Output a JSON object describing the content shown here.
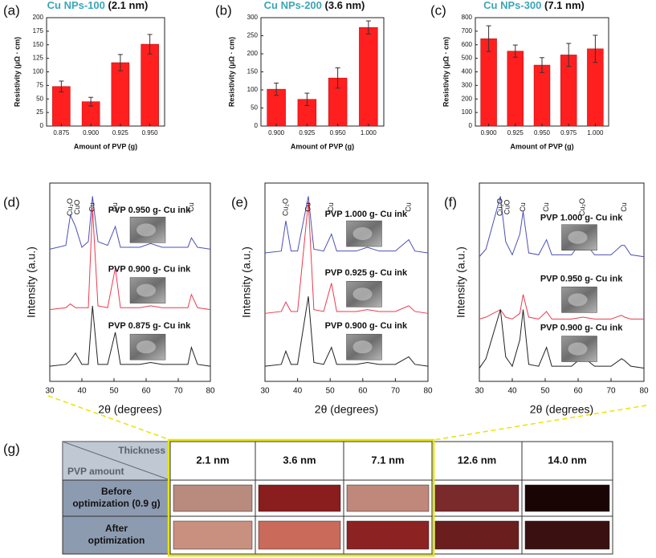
{
  "chart_data": [
    {
      "type": "bar",
      "label": "(a)",
      "title": "Cu NPs-100",
      "subtitle": "(2.1 nm)",
      "ylabel": "Resistivity (μΩ · cm)",
      "xlabel": "Amount of PVP (g)",
      "categories": [
        "0.875",
        "0.900",
        "0.925",
        "0.950"
      ],
      "values": [
        73,
        45,
        117,
        151
      ],
      "errors": [
        10,
        8,
        15,
        18
      ],
      "color": "#ff1f1f",
      "ylim": [
        0,
        200
      ],
      "yticks": [
        0,
        25,
        50,
        75,
        100,
        125,
        150,
        175,
        200
      ]
    },
    {
      "type": "bar",
      "label": "(b)",
      "title": "Cu NPs-200",
      "subtitle": "(3.6 nm)",
      "ylabel": "Resistivity (μΩ · cm)",
      "xlabel": "Amount of PVP (g)",
      "categories": [
        "0.900",
        "0.925",
        "0.950",
        "1.000"
      ],
      "values": [
        102,
        74,
        133,
        273
      ],
      "errors": [
        17,
        17,
        28,
        18
      ],
      "color": "#ff1f1f",
      "ylim": [
        0,
        300
      ],
      "yticks": [
        0,
        50,
        100,
        150,
        200,
        250,
        300
      ]
    },
    {
      "type": "bar",
      "label": "(c)",
      "title": "Cu NPs-300",
      "subtitle": "(7.1 nm)",
      "ylabel": "Resistivity (μΩ · cm)",
      "xlabel": "Amount of PVP (g)",
      "categories": [
        "0.900",
        "0.925",
        "0.950",
        "0.975",
        "1.000"
      ],
      "values": [
        645,
        553,
        450,
        525,
        570
      ],
      "errors": [
        95,
        45,
        55,
        85,
        100
      ],
      "color": "#ff1f1f",
      "ylim": [
        0,
        800
      ],
      "yticks": [
        0,
        100,
        200,
        300,
        400,
        500,
        600,
        700,
        800
      ]
    },
    {
      "type": "line",
      "label": "(d)",
      "ylabel": "Intensity (a.u.)",
      "xlabel": "2θ (degrees)",
      "x": [
        30,
        35,
        36.4,
        38,
        40,
        42,
        43.3,
        45,
        48,
        50.4,
        52,
        58,
        61.4,
        65,
        70,
        73,
        74.1,
        76,
        80
      ],
      "series": [
        {
          "name": "PVP 0.950 g- Cu ink",
          "color": "#4b50b4",
          "values": [
            70,
            72,
            88,
            82,
            71,
            74,
            98,
            74,
            72,
            82,
            71,
            71,
            73,
            71,
            71,
            71,
            76,
            71,
            70
          ]
        },
        {
          "name": "PVP 0.900 g- Cu ink",
          "color": "#ec3a4e",
          "values": [
            38,
            39,
            41,
            39,
            39,
            39,
            92,
            40,
            39,
            60,
            39,
            39,
            40,
            39,
            39,
            39,
            46,
            39,
            38
          ]
        },
        {
          "name": "PVP 0.875 g- Cu ink",
          "color": "#222222",
          "values": [
            8,
            9,
            11,
            15,
            9,
            9,
            40,
            9,
            9,
            26,
            9,
            9,
            10,
            9,
            9,
            9,
            18,
            9,
            8
          ]
        }
      ],
      "annotations": [
        {
          "text": "Cu₂O",
          "x": 36.4
        },
        {
          "text": "CuO",
          "x": 38.6
        },
        {
          "text": "Cu",
          "x": 43.3
        },
        {
          "text": "Cu",
          "x": 50.4
        },
        {
          "text": "Cu",
          "x": 74.1
        }
      ],
      "xlim": [
        30,
        80
      ],
      "ylim": [
        0,
        105
      ],
      "xticks": [
        30,
        40,
        50,
        60,
        70,
        80
      ]
    },
    {
      "type": "line",
      "label": "(e)",
      "ylabel": "Intensity (a.u.)",
      "xlabel": "2θ (degrees)",
      "x": [
        30,
        35,
        36.4,
        38,
        40,
        43.3,
        45,
        48,
        50.4,
        52,
        58,
        61.4,
        65,
        70,
        74.1,
        76,
        80
      ],
      "series": [
        {
          "name": "PVP 1.000 g- Cu ink",
          "color": "#4b50b4",
          "values": [
            68,
            69,
            85,
            69,
            69,
            98,
            70,
            69,
            78,
            69,
            69,
            71,
            69,
            69,
            75,
            69,
            68
          ]
        },
        {
          "name": "PVP 0.925 g- Cu ink",
          "color": "#ec3a4e",
          "values": [
            36,
            37,
            42,
            37,
            37,
            95,
            38,
            37,
            52,
            37,
            37,
            38,
            37,
            37,
            40,
            37,
            36
          ]
        },
        {
          "name": "PVP 0.900 g- Cu ink",
          "color": "#222222",
          "values": [
            8,
            9,
            16,
            9,
            9,
            45,
            10,
            9,
            18,
            9,
            9,
            10,
            9,
            9,
            13,
            9,
            8
          ]
        }
      ],
      "annotations": [
        {
          "text": "Cu₂O",
          "x": 36.4
        },
        {
          "text": "Cu",
          "x": 43.3
        },
        {
          "text": "Cu",
          "x": 50.4
        },
        {
          "text": "Cu",
          "x": 74.1
        }
      ],
      "xlim": [
        30,
        80
      ],
      "ylim": [
        0,
        105
      ],
      "xticks": [
        30,
        40,
        50,
        60,
        70,
        80
      ]
    },
    {
      "type": "line",
      "label": "(f)",
      "ylabel": "Intensity (a.u.)",
      "xlabel": "2θ (degrees)",
      "x": [
        30,
        32,
        36.4,
        38,
        40,
        42.3,
        43.3,
        45,
        48,
        50.4,
        52,
        58,
        61.4,
        65,
        70,
        73.2,
        74.1,
        76,
        80
      ],
      "series": [
        {
          "name": "PVP 1.000 g- Cu ink",
          "color": "#4b50b4",
          "values": [
            66,
            70,
            98,
            74,
            67,
            78,
            90,
            68,
            67,
            75,
            67,
            67,
            75,
            67,
            67,
            72,
            72,
            67,
            66
          ]
        },
        {
          "name": "PVP 0.950 g- Cu ink",
          "color": "#ec3a4e",
          "values": [
            33,
            34,
            38,
            34,
            33,
            36,
            46,
            34,
            33,
            37,
            33,
            33,
            34,
            33,
            33,
            35,
            34,
            33,
            33
          ]
        },
        {
          "name": "PVP 0.900 g- Cu ink",
          "color": "#222222",
          "values": [
            7,
            12,
            38,
            13,
            8,
            22,
            38,
            9,
            8,
            18,
            8,
            8,
            13,
            8,
            8,
            12,
            11,
            8,
            7
          ]
        }
      ],
      "annotations": [
        {
          "text": "Cu₂O",
          "x": 36.4
        },
        {
          "text": "CuO",
          "x": 38.6
        },
        {
          "text": "Cu",
          "x": 43.3
        },
        {
          "text": "Cu",
          "x": 50.4
        },
        {
          "text": "Cu₂O",
          "x": 61.4
        },
        {
          "text": "Cu",
          "x": 74.1
        }
      ],
      "xlim": [
        30,
        80
      ],
      "ylim": [
        0,
        105
      ],
      "xticks": [
        30,
        40,
        50,
        60,
        70,
        80
      ]
    }
  ],
  "table": {
    "label": "(g)",
    "corner_top": "Thickness",
    "corner_bottom": "PVP amount",
    "columns": [
      "2.1 nm",
      "3.6 nm",
      "7.1 nm",
      "12.6 nm",
      "14.0 nm"
    ],
    "rows": [
      [
        "Before",
        "optimization (0.9 g)"
      ],
      [
        "After",
        "optimization"
      ]
    ]
  }
}
